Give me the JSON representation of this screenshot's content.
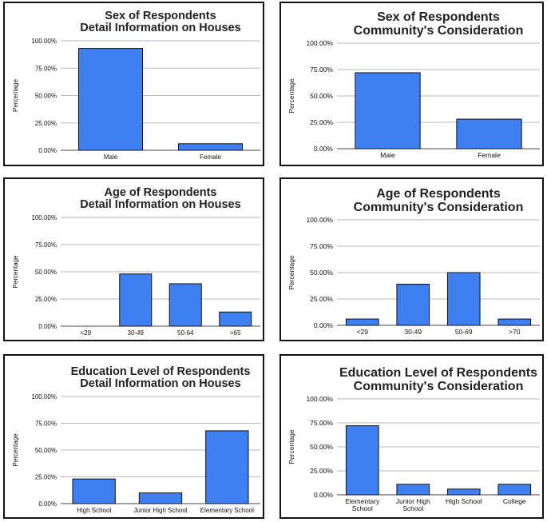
{
  "colors": {
    "bar_fill": "#3f7ff2",
    "bar_stroke": "#111111",
    "grid": "#b8b8b8"
  },
  "chart_data": [
    {
      "id": "sex-houses",
      "type": "bar",
      "title": [
        "Sex of Respondents",
        "Detail Information on Houses"
      ],
      "ylabel": "Percentage",
      "yticks": [
        "0.00%",
        "25.00%",
        "50.00%",
        "75.00%",
        "100.00%"
      ],
      "ylim": [
        0,
        100
      ],
      "categories": [
        [
          "Male"
        ],
        [
          "Female"
        ]
      ],
      "values": [
        93,
        6
      ]
    },
    {
      "id": "sex-community",
      "type": "bar",
      "title": [
        "Sex of Respondents",
        "Community's Consideration"
      ],
      "ylabel": "Percentage",
      "yticks": [
        "0.00%",
        "25.00%",
        "50.00%",
        "75.00%",
        "100.00%"
      ],
      "ylim": [
        0,
        100
      ],
      "categories": [
        [
          "Male"
        ],
        [
          "Female"
        ]
      ],
      "values": [
        72,
        28
      ]
    },
    {
      "id": "age-houses",
      "type": "bar",
      "title": [
        "Age of Respondents",
        "Detail Information on Houses"
      ],
      "ylabel": "Percentage",
      "yticks": [
        "0.00%",
        "25.00%",
        "50.00%",
        "75.00%",
        "100.00%"
      ],
      "ylim": [
        0,
        100
      ],
      "categories": [
        [
          "<29"
        ],
        [
          "30-49"
        ],
        [
          "50-64"
        ],
        [
          ">65"
        ]
      ],
      "values": [
        0,
        48,
        39,
        13
      ]
    },
    {
      "id": "age-community",
      "type": "bar",
      "title": [
        "Age of Respondents",
        "Community's Consideration"
      ],
      "ylabel": "Percentage",
      "yticks": [
        "0.00%",
        "25.00%",
        "50.00%",
        "75.00%",
        "100.00%"
      ],
      "ylim": [
        0,
        100
      ],
      "categories": [
        [
          "<29"
        ],
        [
          "30-49"
        ],
        [
          "50-69"
        ],
        [
          ">70"
        ]
      ],
      "values": [
        6,
        39,
        50,
        6
      ]
    },
    {
      "id": "edu-houses",
      "type": "bar",
      "title": [
        "Education Level of Respondents",
        "Detail Information on Houses"
      ],
      "ylabel": "Percentage",
      "yticks": [
        "0.00%",
        "25.00%",
        "50.00%",
        "75.00%",
        "100.00%"
      ],
      "ylim": [
        0,
        100
      ],
      "categories": [
        [
          "High School"
        ],
        [
          "Junior High School"
        ],
        [
          "Elementary School"
        ]
      ],
      "values": [
        23,
        10,
        68
      ]
    },
    {
      "id": "edu-community",
      "type": "bar",
      "title": [
        "Education Level of Respondents",
        "Community's Consideration"
      ],
      "ylabel": "Percentage",
      "yticks": [
        "0.00%",
        "25.00%",
        "50.00%",
        "75.00%",
        "100.00%"
      ],
      "ylim": [
        0,
        100
      ],
      "categories": [
        [
          "Elementary",
          "School"
        ],
        [
          "Junior High",
          "School"
        ],
        [
          "High School"
        ],
        [
          "College"
        ]
      ],
      "values": [
        72,
        11,
        6,
        11
      ]
    }
  ]
}
